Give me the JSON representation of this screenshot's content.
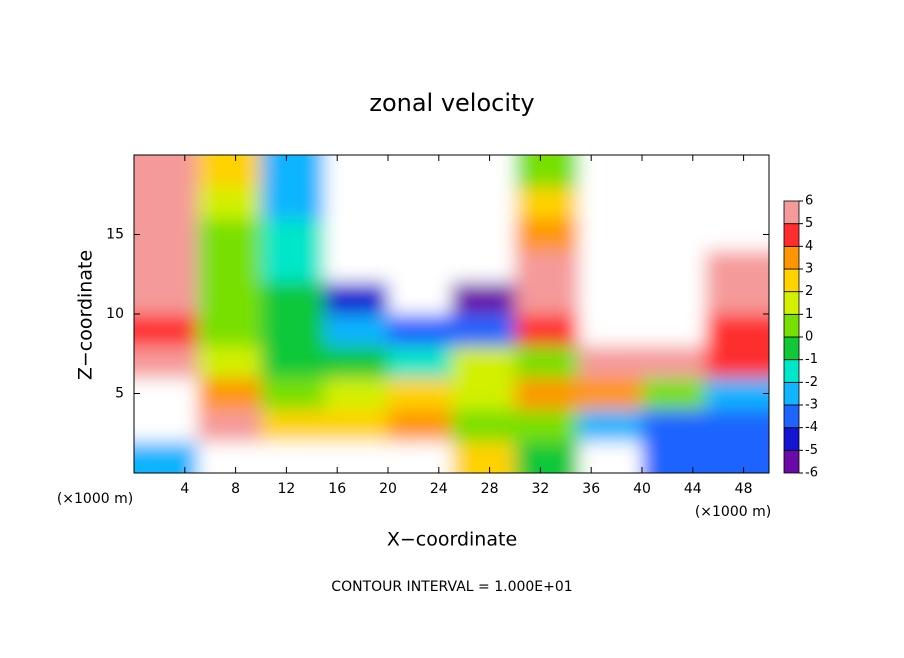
{
  "chart_data": {
    "type": "contour",
    "title": "zonal velocity",
    "x_label": "X−coordinate",
    "y_label": "Z−coordinate",
    "x_unit_label": "(×1000 m)",
    "footer": "CONTOUR INTERVAL = 1.000E+01",
    "xlim": [
      0,
      50
    ],
    "ylim": [
      0,
      20
    ],
    "xticks": [
      4,
      8,
      12,
      16,
      20,
      24,
      28,
      32,
      36,
      40,
      44,
      48
    ],
    "yticks": [
      5,
      10,
      15
    ],
    "x": [
      2.5,
      7.5,
      12.5,
      17.5,
      22.5,
      27.5,
      32.5,
      37.5,
      42.5,
      47.5
    ],
    "y": [
      1,
      3,
      5,
      7,
      9,
      11,
      13,
      15,
      17,
      19
    ],
    "z": [
      [
        -3,
        8,
        7,
        8,
        8,
        2,
        -1,
        -7,
        -4,
        -4
      ],
      [
        7,
        6,
        2,
        2,
        3,
        0,
        0,
        -3,
        -4,
        -4
      ],
      [
        7,
        3,
        0,
        1,
        2,
        1,
        3,
        3,
        0,
        -3
      ],
      [
        6,
        1,
        -1,
        -1,
        -2,
        1,
        0,
        5,
        5,
        4
      ],
      [
        4,
        0,
        -1,
        -3,
        -4,
        -4,
        4,
        7,
        7,
        4
      ],
      [
        5,
        0,
        -1,
        -5,
        -9,
        -6,
        6,
        7,
        7,
        5
      ],
      [
        5,
        0,
        -2,
        -7,
        -11,
        -7,
        5,
        7,
        8,
        6
      ],
      [
        5,
        0,
        -2,
        -8,
        -11,
        -7,
        3,
        7,
        10,
        7
      ],
      [
        5,
        1,
        -3,
        -8,
        -11,
        -8,
        2,
        7,
        8,
        8
      ],
      [
        5,
        2,
        -3,
        -8,
        -8,
        -8,
        0,
        7,
        8,
        8
      ]
    ],
    "clim": [
      -6,
      6
    ],
    "colorbar_ticks": [
      -6,
      -5,
      -4,
      -3,
      -2,
      -1,
      0,
      1,
      2,
      3,
      4,
      5,
      6
    ],
    "colors": [
      "#6a0aa8",
      "#1414d2",
      "#1e64ff",
      "#10b4ff",
      "#00e6c8",
      "#10c838",
      "#78e000",
      "#d2f000",
      "#ffd200",
      "#ff9600",
      "#ff2d2d",
      "#f59a9a"
    ]
  }
}
